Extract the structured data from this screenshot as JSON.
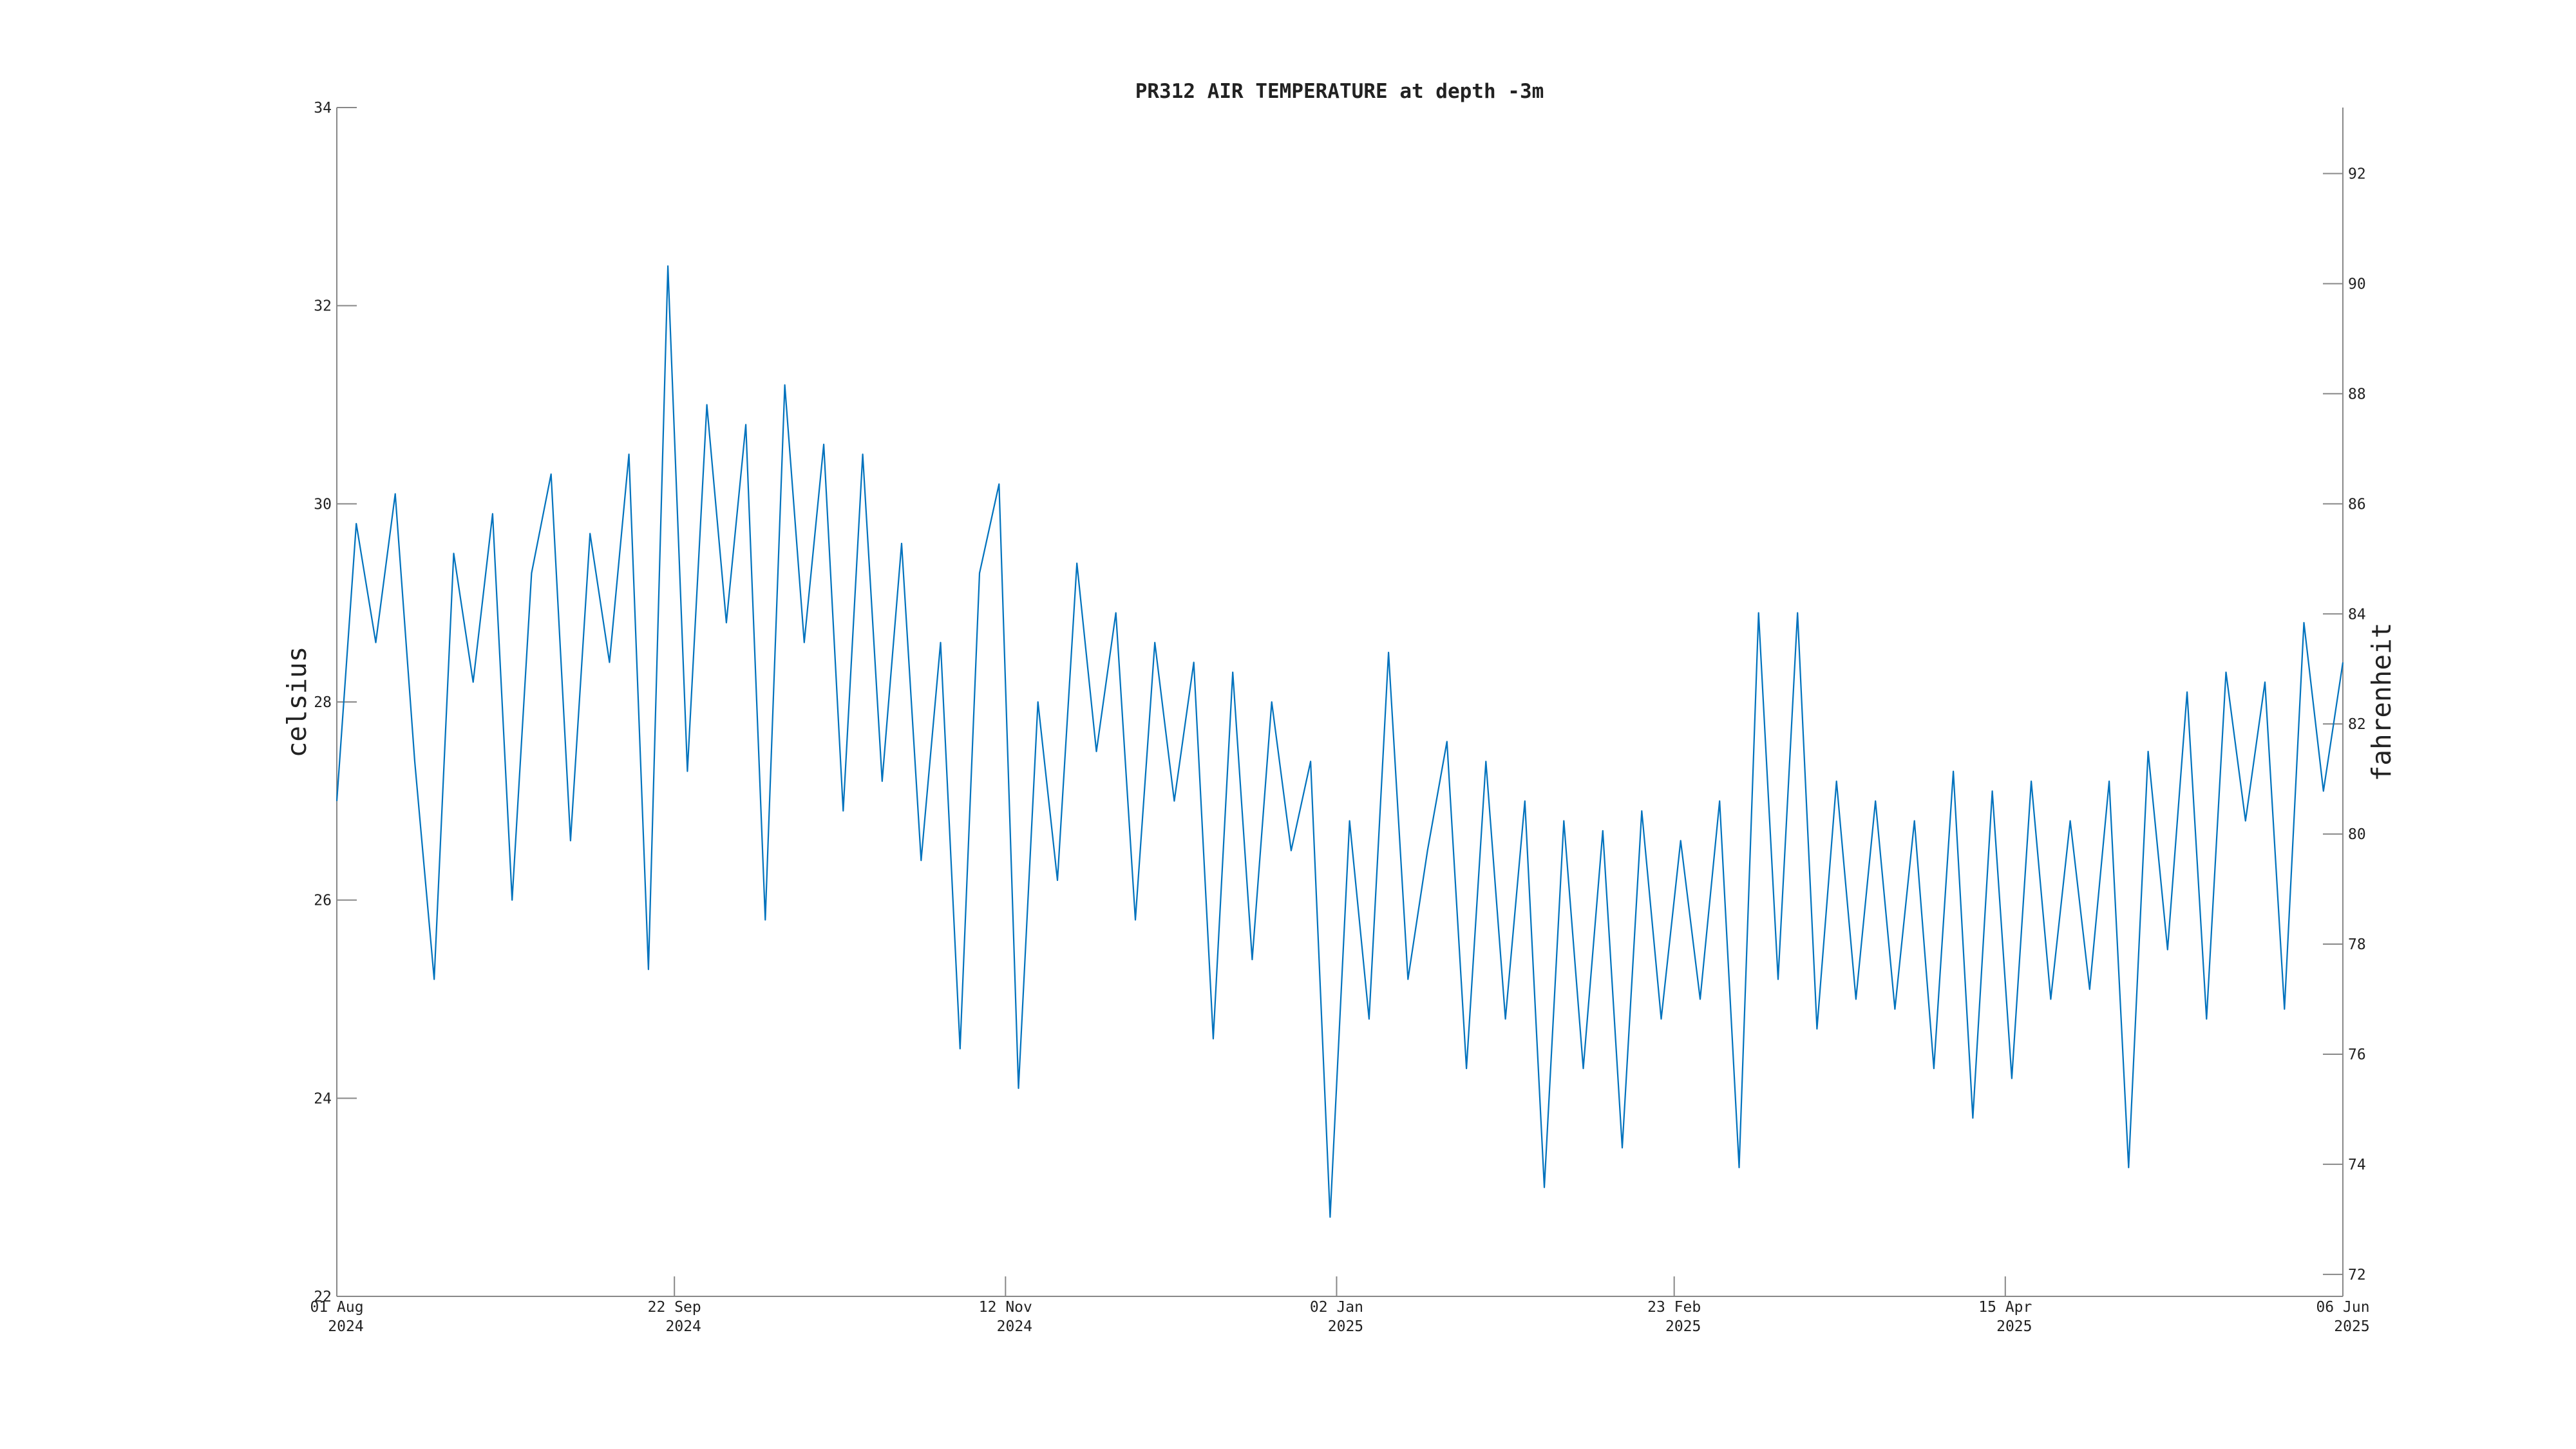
{
  "chart_data": {
    "type": "line",
    "title": "PR312 AIR TEMPERATURE at depth -3m",
    "ylabel": "celsius",
    "y2label": "fahrenheit",
    "x": [
      "2024-08-01",
      "2024-08-04",
      "2024-08-07",
      "2024-08-10",
      "2024-08-13",
      "2024-08-16",
      "2024-08-19",
      "2024-08-22",
      "2024-08-25",
      "2024-08-28",
      "2024-08-31",
      "2024-09-03",
      "2024-09-06",
      "2024-09-09",
      "2024-09-12",
      "2024-09-15",
      "2024-09-18",
      "2024-09-21",
      "2024-09-24",
      "2024-09-27",
      "2024-09-30",
      "2024-10-03",
      "2024-10-06",
      "2024-10-09",
      "2024-10-12",
      "2024-10-15",
      "2024-10-18",
      "2024-10-21",
      "2024-10-24",
      "2024-10-27",
      "2024-10-30",
      "2024-11-02",
      "2024-11-05",
      "2024-11-08",
      "2024-11-11",
      "2024-11-14",
      "2024-11-17",
      "2024-11-20",
      "2024-11-23",
      "2024-11-26",
      "2024-11-29",
      "2024-12-02",
      "2024-12-05",
      "2024-12-08",
      "2024-12-11",
      "2024-12-14",
      "2024-12-17",
      "2024-12-20",
      "2024-12-23",
      "2024-12-26",
      "2024-12-29",
      "2025-01-01",
      "2025-01-04",
      "2025-01-07",
      "2025-01-10",
      "2025-01-13",
      "2025-01-16",
      "2025-01-19",
      "2025-01-22",
      "2025-01-25",
      "2025-01-28",
      "2025-01-31",
      "2025-02-03",
      "2025-02-06",
      "2025-02-09",
      "2025-02-12",
      "2025-02-15",
      "2025-02-18",
      "2025-02-21",
      "2025-02-24",
      "2025-02-27",
      "2025-03-02",
      "2025-03-05",
      "2025-03-08",
      "2025-03-11",
      "2025-03-14",
      "2025-03-17",
      "2025-03-20",
      "2025-03-23",
      "2025-03-26",
      "2025-03-29",
      "2025-04-01",
      "2025-04-04",
      "2025-04-07",
      "2025-04-10",
      "2025-04-13",
      "2025-04-16",
      "2025-04-19",
      "2025-04-22",
      "2025-04-25",
      "2025-04-28",
      "2025-05-01",
      "2025-05-04",
      "2025-05-07",
      "2025-05-10",
      "2025-05-13",
      "2025-05-16",
      "2025-05-19",
      "2025-05-22",
      "2025-05-25",
      "2025-05-28",
      "2025-05-31",
      "2025-06-03",
      "2025-06-06"
    ],
    "series": [
      {
        "name": "air temperature",
        "color": "#0072bd",
        "values": [
          27.0,
          29.8,
          28.6,
          30.1,
          27.4,
          25.2,
          29.5,
          28.2,
          29.9,
          26.0,
          29.3,
          30.3,
          26.6,
          29.7,
          28.4,
          30.5,
          25.3,
          32.4,
          27.3,
          31.0,
          28.8,
          30.8,
          25.8,
          31.2,
          28.6,
          30.6,
          26.9,
          30.5,
          27.2,
          29.6,
          26.4,
          28.6,
          24.5,
          29.3,
          30.2,
          24.1,
          28.0,
          26.2,
          29.4,
          27.5,
          28.9,
          25.8,
          28.6,
          27.0,
          28.4,
          24.6,
          28.3,
          25.4,
          28.0,
          26.5,
          27.4,
          22.8,
          26.8,
          24.8,
          28.5,
          25.2,
          26.5,
          27.6,
          24.3,
          27.4,
          24.8,
          27.0,
          23.1,
          26.8,
          24.3,
          26.7,
          23.5,
          26.9,
          24.8,
          26.6,
          25.0,
          27.0,
          23.3,
          28.9,
          25.2,
          28.9,
          24.7,
          27.2,
          25.0,
          27.0,
          24.9,
          26.8,
          24.3,
          27.3,
          23.8,
          27.1,
          24.2,
          27.2,
          25.0,
          26.8,
          25.1,
          27.2,
          23.3,
          27.5,
          25.5,
          28.1,
          24.8,
          28.3,
          26.8,
          28.2,
          24.9,
          28.8,
          27.1,
          28.4
        ]
      }
    ],
    "xlim": [
      "2024-08-01",
      "2025-06-06"
    ],
    "xticks": [
      {
        "value": "2024-08-01",
        "label": [
          "01 Aug",
          "2024"
        ]
      },
      {
        "value": "2024-09-22",
        "label": [
          "22 Sep",
          "2024"
        ]
      },
      {
        "value": "2024-11-12",
        "label": [
          "12 Nov",
          "2024"
        ]
      },
      {
        "value": "2025-01-02",
        "label": [
          "02 Jan",
          "2025"
        ]
      },
      {
        "value": "2025-02-23",
        "label": [
          "23 Feb",
          "2025"
        ]
      },
      {
        "value": "2025-04-15",
        "label": [
          "15 Apr",
          "2025"
        ]
      },
      {
        "value": "2025-06-06",
        "label": [
          "06 Jun",
          "2025"
        ]
      }
    ],
    "ylim": [
      22,
      34
    ],
    "yticks": [
      22,
      24,
      26,
      28,
      30,
      32,
      34
    ],
    "y2lim": [
      71.6,
      93.2
    ],
    "y2ticks": [
      72,
      74,
      76,
      78,
      80,
      82,
      84,
      86,
      88,
      90,
      92
    ],
    "grid": false
  }
}
